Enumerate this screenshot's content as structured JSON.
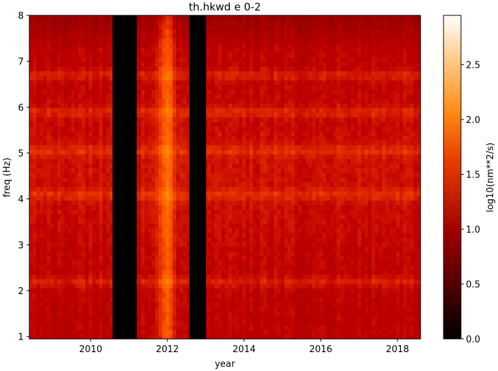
{
  "chart_data": {
    "type": "heatmap",
    "title": "th.hkwd e 0-2",
    "xlabel": "year",
    "ylabel": "freq (Hz)",
    "colorbar_label": "log10(nm**2/s)",
    "colormap": "gist_heat",
    "xlim": [
      2008.4,
      2018.6
    ],
    "ylim": [
      0.95,
      8.0
    ],
    "xticks": [
      {
        "value": 2010,
        "label": "2010"
      },
      {
        "value": 2012,
        "label": "2012"
      },
      {
        "value": 2014,
        "label": "2014"
      },
      {
        "value": 2016,
        "label": "2016"
      },
      {
        "value": 2018,
        "label": "2018"
      }
    ],
    "yticks": [
      {
        "value": 1,
        "label": "1"
      },
      {
        "value": 2,
        "label": "2"
      },
      {
        "value": 3,
        "label": "3"
      },
      {
        "value": 4,
        "label": "4"
      },
      {
        "value": 5,
        "label": "5"
      },
      {
        "value": 6,
        "label": "6"
      },
      {
        "value": 7,
        "label": "7"
      },
      {
        "value": 8,
        "label": "8"
      }
    ],
    "color_range": [
      0.0,
      2.95
    ],
    "colorbar_ticks": [
      {
        "value": 0.0,
        "label": "0.0"
      },
      {
        "value": 0.5,
        "label": "0.5"
      },
      {
        "value": 1.0,
        "label": "1.0"
      },
      {
        "value": 1.5,
        "label": "1.5"
      },
      {
        "value": 2.0,
        "label": "2.0"
      },
      {
        "value": 2.5,
        "label": "2.5"
      }
    ],
    "data_gaps": [
      {
        "start": 2010.57,
        "end": 2011.2
      },
      {
        "start": 2012.57,
        "end": 2013.01
      }
    ],
    "high_activity_period": {
      "start": 2011.2,
      "end": 2012.57
    },
    "banded_frequencies": [
      2.15,
      4.05,
      5.0,
      5.85,
      6.65
    ]
  }
}
